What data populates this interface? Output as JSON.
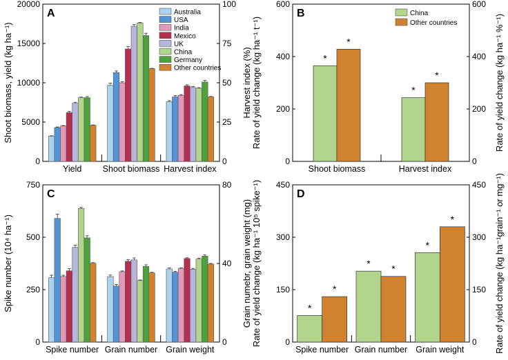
{
  "colors": {
    "Australia": "#a9d3ee",
    "USA": "#5294d4",
    "India": "#e29ab8",
    "Mexico": "#b52f4f",
    "UK": "#b8b5dc",
    "China": "#b2d58e",
    "Germany": "#4fa13e",
    "Other countries": "#d0822f"
  },
  "chart_data": [
    {
      "panel": "A",
      "type": "bar",
      "categories": [
        "Yield",
        "Shoot biomass",
        "Harvest index"
      ],
      "legend": [
        "Australia",
        "USA",
        "India",
        "Mexico",
        "UK",
        "China",
        "Germany",
        "Other countries"
      ],
      "ylabel": "Shoot biomass, yield (kg ha⁻¹)",
      "ylabel_right": "Harvest index (%)",
      "ylim": [
        0,
        20000
      ],
      "yticks": [
        "0",
        "5000",
        "10000",
        "15000",
        "20000"
      ],
      "ylim_right": [
        0,
        100
      ],
      "yticks_right": [
        "0",
        "25",
        "50",
        "75",
        "100"
      ],
      "series": [
        {
          "name": "Australia",
          "values": [
            3200,
            9700,
            38
          ],
          "errors": [
            60,
            250,
            0.6
          ]
        },
        {
          "name": "USA",
          "values": [
            4300,
            11300,
            41
          ],
          "errors": [
            80,
            200,
            0.8
          ]
        },
        {
          "name": "India",
          "values": [
            4500,
            10000,
            42
          ],
          "errors": [
            60,
            150,
            0.5
          ]
        },
        {
          "name": "Mexico",
          "values": [
            6200,
            14300,
            48
          ],
          "errors": [
            150,
            300,
            0.7
          ]
        },
        {
          "name": "UK",
          "values": [
            7400,
            17200,
            47
          ],
          "errors": [
            120,
            200,
            0.6
          ]
        },
        {
          "name": "China",
          "values": [
            8100,
            17600,
            46.5
          ],
          "errors": [
            80,
            80,
            0.4
          ]
        },
        {
          "name": "Germany",
          "values": [
            8100,
            16000,
            50.5
          ],
          "errors": [
            150,
            300,
            1.0
          ]
        },
        {
          "name": "Other countries",
          "values": [
            4600,
            11800,
            41
          ],
          "errors": [
            40,
            40,
            0.3
          ]
        }
      ]
    },
    {
      "panel": "B",
      "type": "bar",
      "categories": [
        "Shoot biomass",
        "Harvest index"
      ],
      "legend": [
        "China",
        "Other countries"
      ],
      "ylabel": "Rate of yield change (kg ha⁻¹ t⁻¹)",
      "ylabel_right": "Rate of yield change (kg ha⁻¹ %⁻¹)",
      "ylim": [
        0,
        600
      ],
      "yticks": [
        "0",
        "200",
        "400",
        "600"
      ],
      "ylim_right": [
        0,
        600
      ],
      "yticks_right": [
        "0",
        "200",
        "400",
        "600"
      ],
      "series": [
        {
          "name": "China",
          "values": [
            365,
            243
          ],
          "significant": [
            "*",
            "*"
          ]
        },
        {
          "name": "Other countries",
          "values": [
            428,
            300
          ],
          "significant": [
            "*",
            "*"
          ]
        }
      ]
    },
    {
      "panel": "C",
      "type": "bar",
      "categories": [
        "Spike number",
        "Grain number",
        "Grain weight"
      ],
      "ylabel": "Spike number (10⁴ ha⁻¹)",
      "ylabel_right": "Grain numebr, grain weight (mg)",
      "ylim": [
        0,
        750
      ],
      "yticks": [
        "0",
        "250",
        "500",
        "750"
      ],
      "ylim_right": [
        0,
        80
      ],
      "yticks_right": [
        "0",
        "40",
        "80"
      ],
      "series": [
        {
          "name": "Australia",
          "values": [
            307,
            33.3,
            37.2
          ],
          "errors": [
            12,
            0.8,
            0.5
          ]
        },
        {
          "name": "USA",
          "values": [
            590,
            28.5,
            35.5
          ],
          "errors": [
            20,
            0.8,
            0.4
          ]
        },
        {
          "name": "India",
          "values": [
            313,
            35.8,
            37.5
          ],
          "errors": [
            6,
            0.4,
            0.3
          ]
        },
        {
          "name": "Mexico",
          "values": [
            340,
            41.1,
            42.5
          ],
          "errors": [
            10,
            0.9,
            0.4
          ]
        },
        {
          "name": "UK",
          "values": [
            452,
            41.8,
            37.1
          ],
          "errors": [
            10,
            1.0,
            0.4
          ]
        },
        {
          "name": "China",
          "values": [
            637,
            31.3,
            42.2
          ],
          "errors": [
            5,
            0.3,
            0.5
          ]
        },
        {
          "name": "Germany",
          "values": [
            497,
            38.5,
            43.7
          ],
          "errors": [
            10,
            0.8,
            0.6
          ]
        },
        {
          "name": "Other countries",
          "values": [
            376,
            35.2,
            39.7
          ],
          "errors": [
            3,
            0.3,
            0.3
          ]
        }
      ]
    },
    {
      "panel": "D",
      "type": "bar",
      "categories": [
        "Spike number",
        "Grain number",
        "Grain weight"
      ],
      "legend": [
        "China",
        "Other countries"
      ],
      "ylabel": "Rate of yield change (kg ha⁻¹ 10⁵ spike⁻¹)",
      "ylabel_right": "Rate of yield change (kg ha⁻¹grain⁻¹ or mg⁻¹)",
      "ylim": [
        0,
        450
      ],
      "yticks": [
        "0",
        "150",
        "300",
        "450"
      ],
      "ylim_right": [
        0,
        450
      ],
      "yticks_right": [
        "0",
        "150",
        "300",
        "450"
      ],
      "series": [
        {
          "name": "China",
          "values": [
            76,
            203,
            256
          ],
          "significant": [
            "*",
            "*",
            "*"
          ]
        },
        {
          "name": "Other countries",
          "values": [
            130,
            188,
            330
          ],
          "significant": [
            "*",
            "*",
            "*"
          ]
        }
      ]
    }
  ]
}
